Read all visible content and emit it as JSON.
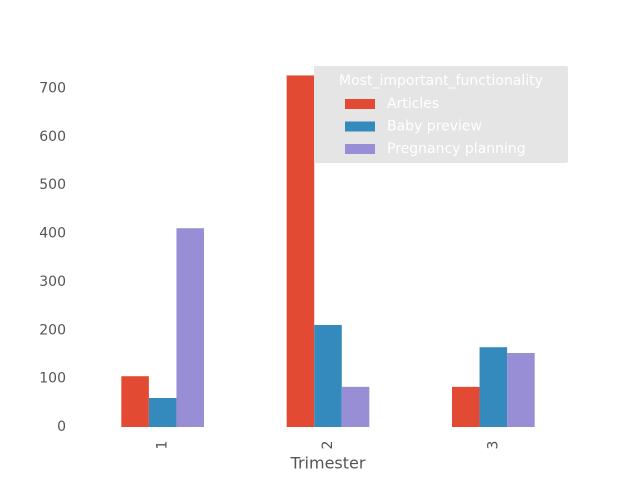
{
  "chart_data": {
    "type": "bar",
    "x_label": "Trimester",
    "categories": [
      "1",
      "2",
      "3"
    ],
    "series": [
      {
        "name": "Articles",
        "color": "#E24A33",
        "values": [
          105,
          727,
          83
        ]
      },
      {
        "name": "Baby preview",
        "color": "#348ABD",
        "values": [
          60,
          211,
          165
        ]
      },
      {
        "name": "Pregnancy planning",
        "color": "#988ED5",
        "values": [
          411,
          83,
          153
        ]
      }
    ],
    "legend_title": "Most_important_functionality",
    "legend_position": "upper right",
    "ylim": [
      0,
      763
    ],
    "yticks": [
      0,
      100,
      200,
      300,
      400,
      500,
      600,
      700
    ],
    "grid": false
  }
}
